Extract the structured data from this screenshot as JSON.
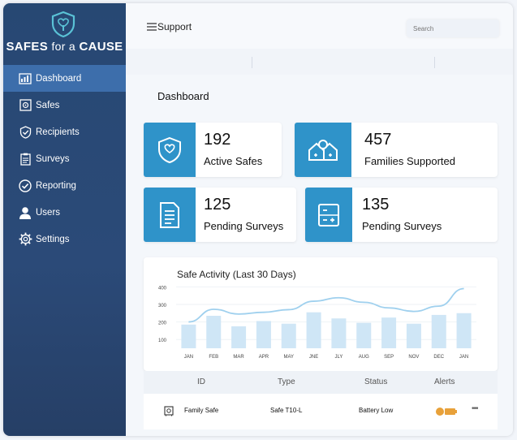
{
  "brand": {
    "name_left": "SAFES",
    "name_mid": "for a",
    "name_right": "CAUSE"
  },
  "sidebar": {
    "items": [
      {
        "label": "Dashboard",
        "icon": "dashboard-icon",
        "active": true
      },
      {
        "label": "Safes",
        "icon": "safe-icon"
      },
      {
        "label": "Recipients",
        "icon": "shield-check-icon"
      },
      {
        "label": "Surveys",
        "icon": "clipboard-icon"
      },
      {
        "label": "Reporting",
        "icon": "check-circle-icon"
      },
      {
        "label": "Users",
        "icon": "user-icon"
      },
      {
        "label": "Settings",
        "icon": "gear-icon"
      }
    ]
  },
  "header": {
    "title": "Support",
    "search_placeholder": "Search"
  },
  "main": {
    "title": "Dashboard",
    "stats": [
      {
        "value": "192",
        "label": "Active Safes",
        "icon": "shield-icon"
      },
      {
        "value": "457",
        "label": "Families Supported",
        "icon": "family-icon"
      },
      {
        "value": "125",
        "label": "Pending Surveys",
        "icon": "document-icon"
      },
      {
        "value": "135",
        "label": "Pending Surveys",
        "icon": "calculator-icon"
      }
    ]
  },
  "chart_data": {
    "type": "bar",
    "title": "Safe Activity (Last 30 Days)",
    "categories": [
      "JAN",
      "FEB",
      "MAR",
      "APR",
      "MAY",
      "JNE",
      "JLY",
      "AUG",
      "SEP",
      "NOV",
      "DEC",
      "JAN"
    ],
    "values": [
      185,
      235,
      175,
      205,
      190,
      255,
      220,
      195,
      225,
      190,
      240,
      250
    ],
    "line_values": [
      200,
      272,
      245,
      255,
      270,
      318,
      338,
      312,
      280,
      260,
      290,
      390
    ],
    "yticks": [
      100,
      200,
      300,
      400
    ],
    "ylim": [
      50,
      420
    ],
    "colors": {
      "bar": "#cfe6f6",
      "line": "#9fd0ee"
    }
  },
  "table": {
    "columns": [
      "ID",
      "Type",
      "Status",
      "Alerts"
    ],
    "rows": [
      {
        "name": "Family Safe",
        "type": "Safe T10-L",
        "status": "Battery Low",
        "more": "•••"
      }
    ]
  },
  "colors": {
    "sidebar": "#274873",
    "active": "#3d6eab",
    "tile": "#2f93c9",
    "alert": "#e8a13a"
  }
}
